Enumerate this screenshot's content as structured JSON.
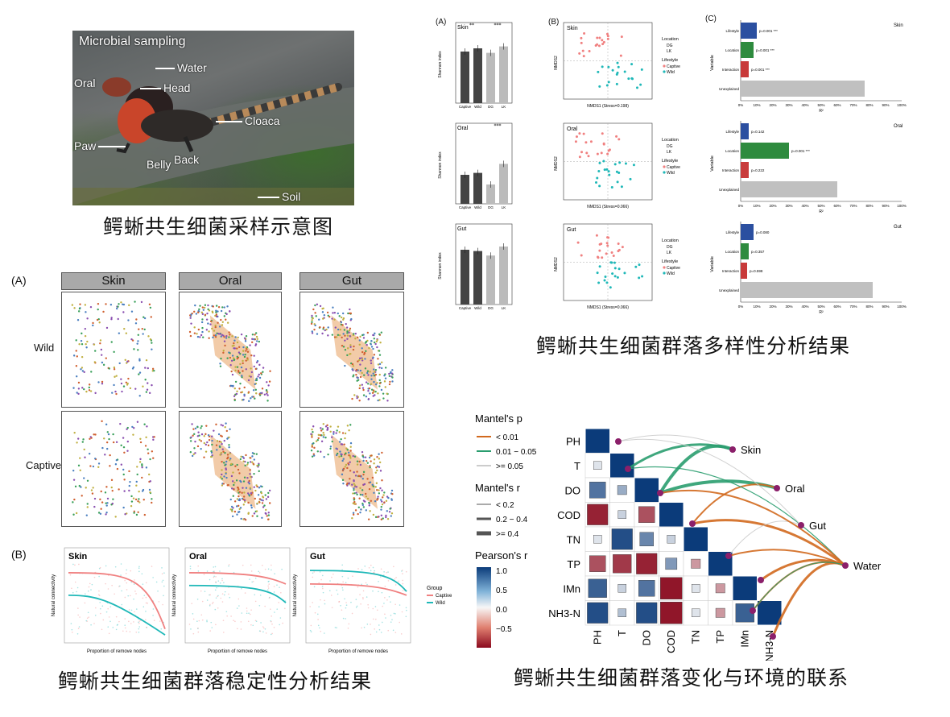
{
  "photo": {
    "title": "Microbial sampling",
    "labels": [
      "Water",
      "Oral",
      "Head",
      "Cloaca",
      "Paw",
      "Belly",
      "Back",
      "Soil"
    ],
    "caption": "鳄蜥共生细菌采样示意图"
  },
  "diversity": {
    "caption": "鳄蜥共生细菌群落多样性分析结果",
    "panel_a": "(A)",
    "panel_b": "(B)",
    "panel_c": "(C)",
    "bar_rows": [
      {
        "name": "Skin",
        "ylabel": "Shannon index",
        "sig1": "**",
        "sig2": "***"
      },
      {
        "name": "Oral",
        "ylabel": "Shannon index",
        "sig1": "",
        "sig2": "***"
      },
      {
        "name": "Gut",
        "ylabel": "Shannon index",
        "sig1": "",
        "sig2": ""
      }
    ],
    "bar_x": [
      "Captive",
      "Wild",
      "DG",
      "LK"
    ],
    "nmds_rows": [
      {
        "name": "Skin",
        "xlabel": "NMDS1 (Stress=0.198)",
        "ylabel": "NMDS2"
      },
      {
        "name": "Oral",
        "xlabel": "NMDS1 (Stress=0.066)",
        "ylabel": "NMDS2"
      },
      {
        "name": "Gut",
        "xlabel": "NMDS1 (Stress=0.066)",
        "ylabel": "NMDS2"
      }
    ],
    "nmds_legend": {
      "loc_title": "Location",
      "loc": [
        "DG",
        "LK"
      ],
      "life_title": "Lifestyle",
      "life": [
        "Captive",
        "Wild"
      ]
    },
    "r2_rows": [
      {
        "name": "Skin",
        "pvals": [
          "p=0.001 ***",
          "p=0.001 ***",
          "p=0.001 ***"
        ]
      },
      {
        "name": "Oral",
        "pvals": [
          "p=0.142",
          "p=0.001 ***",
          "p=0.222"
        ]
      },
      {
        "name": "Gut",
        "pvals": [
          "p=0.080",
          "p=0.357",
          "p=0.598"
        ]
      }
    ],
    "r2_cats": [
      "Lifestyle",
      "Location",
      "Interaction",
      "Unexplained"
    ],
    "r2_ylabel": "Variable",
    "r2_xlabel": "R²",
    "r2_ticks": [
      "0%",
      "10%",
      "20%",
      "30%",
      "40%",
      "50%",
      "60%",
      "70%",
      "80%",
      "90%",
      "100%"
    ]
  },
  "network": {
    "panel_a": "(A)",
    "cols": [
      "Skin",
      "Oral",
      "Gut"
    ],
    "rows": [
      "Wild",
      "Captive"
    ]
  },
  "stability": {
    "panel_b": "(B)",
    "caption": "鳄蜥共生细菌群落稳定性分析结果",
    "panels": [
      "Skin",
      "Oral",
      "Gut"
    ],
    "xlabel": "Proportion of remove nodes",
    "ylabel": "Natural connectivity",
    "legend_title": "Group",
    "legend": [
      "Captive",
      "Wild"
    ]
  },
  "mantel": {
    "caption": "鳄蜥共生细菌群落变化与环境的联系",
    "legend_p_title": "Mantel's p",
    "legend_p": [
      "< 0.01",
      "0.01 − 0.05",
      ">= 0.05"
    ],
    "legend_r_title": "Mantel's r",
    "legend_r": [
      "< 0.2",
      "0.2 − 0.4",
      ">= 0.4"
    ],
    "legend_pearson_title": "Pearson's r",
    "pearson_ticks": [
      "1.0",
      "0.5",
      "0.0",
      "−0.5"
    ],
    "vars": [
      "PH",
      "T",
      "DO",
      "COD",
      "TN",
      "TP",
      "IMn",
      "NH3-N"
    ],
    "targets": [
      "Skin",
      "Oral",
      "Gut",
      "Water"
    ]
  },
  "colors": {
    "captive": "#f08080",
    "wild": "#1fb8b8",
    "blue_bar": "#2b4fa0",
    "green_bar": "#2e8b3e",
    "red_bar": "#c83a3a",
    "grey_bar": "#c0c0c0",
    "orange_line": "#d2691e",
    "teal_line": "#2a9d6f"
  }
}
